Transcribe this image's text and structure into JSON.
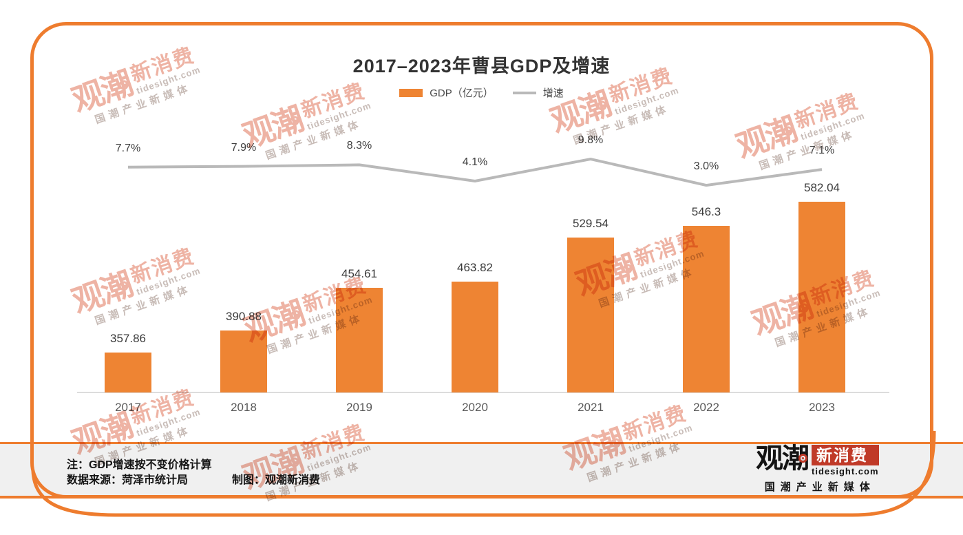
{
  "title": "2017–2023年曹县GDP及增速",
  "legend": {
    "gdp_label": "GDP（亿元）",
    "growth_label": "增速"
  },
  "chart_data": {
    "type": "bar+line",
    "title": "2017–2023年曹县GDP及增速",
    "categories": [
      "2017",
      "2018",
      "2019",
      "2020",
      "2021",
      "2022",
      "2023"
    ],
    "series": [
      {
        "name": "GDP（亿元）",
        "type": "bar",
        "values": [
          357.86,
          390.88,
          454.61,
          463.82,
          529.54,
          546.3,
          582.04
        ],
        "value_labels": [
          "357.86",
          "390.88",
          "454.61",
          "463.82",
          "529.54",
          "546.3",
          "582.04"
        ]
      },
      {
        "name": "增速",
        "type": "line",
        "values": [
          7.7,
          7.9,
          8.3,
          4.1,
          9.8,
          3.0,
          7.1
        ],
        "value_labels": [
          "7.7%",
          "7.9%",
          "8.3%",
          "4.1%",
          "9.8%",
          "3.0%",
          "7.1%"
        ]
      }
    ],
    "bar_color": "#EE8433",
    "line_color": "#b9b9b9",
    "legend_position": "top",
    "grid": false
  },
  "footer": {
    "note": "注：GDP增速按不变价格计算",
    "source": "数据来源：菏泽市统计局",
    "credit": "制图：观潮新消费"
  },
  "logo": {
    "name_left": "观潮",
    "name_box": "新消费",
    "domain": "tidesight.com",
    "tagline": "国潮产业新媒体"
  },
  "watermark": {
    "text_main": "观潮",
    "text_box": "新消费",
    "text_domain": "tidesight.com",
    "text_tagline": "国潮产业新媒体"
  },
  "colors": {
    "frame_orange": "#EE7C2E",
    "bar_orange": "#EE8433",
    "line_gray": "#b9b9b9",
    "logo_red": "#C03A28",
    "footer_bg": "#f0f0f0"
  }
}
